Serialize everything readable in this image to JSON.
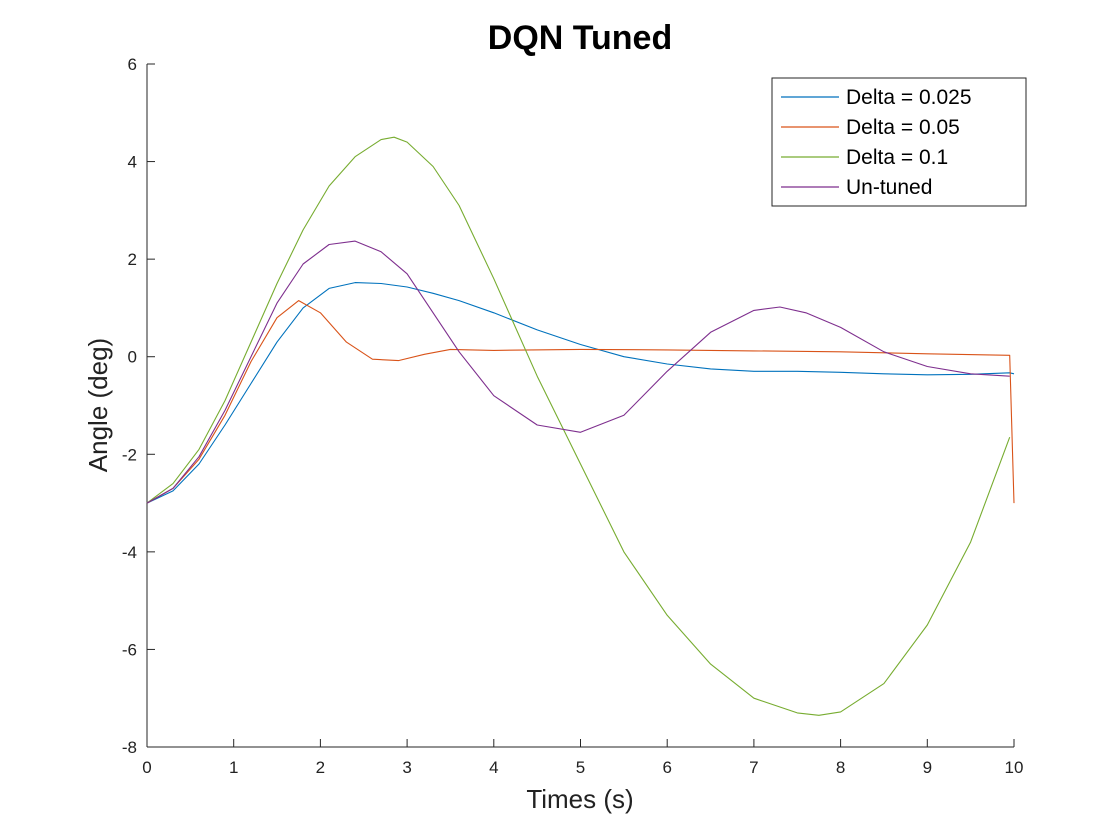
{
  "chart_data": {
    "type": "line",
    "title": "DQN Tuned",
    "xlabel": "Times (s)",
    "ylabel": "Angle (deg)",
    "xlim": [
      0,
      10
    ],
    "ylim": [
      -8,
      6
    ],
    "xticks": [
      0,
      1,
      2,
      3,
      4,
      5,
      6,
      7,
      8,
      9,
      10
    ],
    "yticks": [
      -8,
      -6,
      -4,
      -2,
      0,
      2,
      4,
      6
    ],
    "grid": false,
    "legend_position": "top-right",
    "series": [
      {
        "name": "Delta = 0.025",
        "color": "#0072BD",
        "x": [
          0,
          0.3,
          0.6,
          0.9,
          1.2,
          1.5,
          1.8,
          2.1,
          2.4,
          2.7,
          3.0,
          3.3,
          3.6,
          4.0,
          4.5,
          5.0,
          5.5,
          6.0,
          6.5,
          7.0,
          7.5,
          8.0,
          8.5,
          9.0,
          9.5,
          9.95,
          10.0
        ],
        "y": [
          -3.0,
          -2.75,
          -2.2,
          -1.4,
          -0.55,
          0.3,
          1.0,
          1.4,
          1.52,
          1.5,
          1.43,
          1.3,
          1.15,
          0.9,
          0.55,
          0.25,
          0.0,
          -0.15,
          -0.25,
          -0.3,
          -0.3,
          -0.32,
          -0.35,
          -0.37,
          -0.36,
          -0.33,
          -0.35
        ]
      },
      {
        "name": "Delta = 0.05",
        "color": "#D95319",
        "x": [
          0,
          0.3,
          0.6,
          0.9,
          1.2,
          1.5,
          1.75,
          2.0,
          2.3,
          2.6,
          2.9,
          3.2,
          3.5,
          4.0,
          5.0,
          6.0,
          7.0,
          8.0,
          9.0,
          9.95,
          10.0
        ],
        "y": [
          -3.0,
          -2.7,
          -2.1,
          -1.2,
          -0.1,
          0.8,
          1.15,
          0.9,
          0.3,
          -0.05,
          -0.08,
          0.05,
          0.15,
          0.13,
          0.15,
          0.14,
          0.12,
          0.1,
          0.06,
          0.03,
          -3.0
        ]
      },
      {
        "name": "Delta = 0.1",
        "color": "#77AC30",
        "x": [
          0,
          0.3,
          0.6,
          0.9,
          1.2,
          1.5,
          1.8,
          2.1,
          2.4,
          2.7,
          2.85,
          3.0,
          3.3,
          3.6,
          4.0,
          4.5,
          5.0,
          5.5,
          6.0,
          6.5,
          7.0,
          7.5,
          7.75,
          8.0,
          8.5,
          9.0,
          9.5,
          9.95
        ],
        "y": [
          -3.0,
          -2.6,
          -1.9,
          -0.9,
          0.3,
          1.5,
          2.6,
          3.5,
          4.1,
          4.45,
          4.5,
          4.4,
          3.9,
          3.1,
          1.6,
          -0.4,
          -2.2,
          -4.0,
          -5.3,
          -6.3,
          -7.0,
          -7.3,
          -7.35,
          -7.28,
          -6.7,
          -5.5,
          -3.8,
          -1.65
        ]
      },
      {
        "name": "Un-tuned",
        "color": "#7E2F8E",
        "x": [
          0,
          0.3,
          0.6,
          0.9,
          1.2,
          1.5,
          1.8,
          2.1,
          2.4,
          2.7,
          3.0,
          3.3,
          3.6,
          4.0,
          4.5,
          5.0,
          5.5,
          6.0,
          6.5,
          7.0,
          7.3,
          7.6,
          8.0,
          8.5,
          9.0,
          9.5,
          9.95
        ],
        "y": [
          -3.0,
          -2.7,
          -2.05,
          -1.1,
          0.0,
          1.1,
          1.9,
          2.3,
          2.37,
          2.15,
          1.7,
          0.9,
          0.1,
          -0.8,
          -1.4,
          -1.55,
          -1.2,
          -0.3,
          0.5,
          0.95,
          1.02,
          0.9,
          0.6,
          0.1,
          -0.2,
          -0.35,
          -0.4
        ]
      }
    ]
  }
}
